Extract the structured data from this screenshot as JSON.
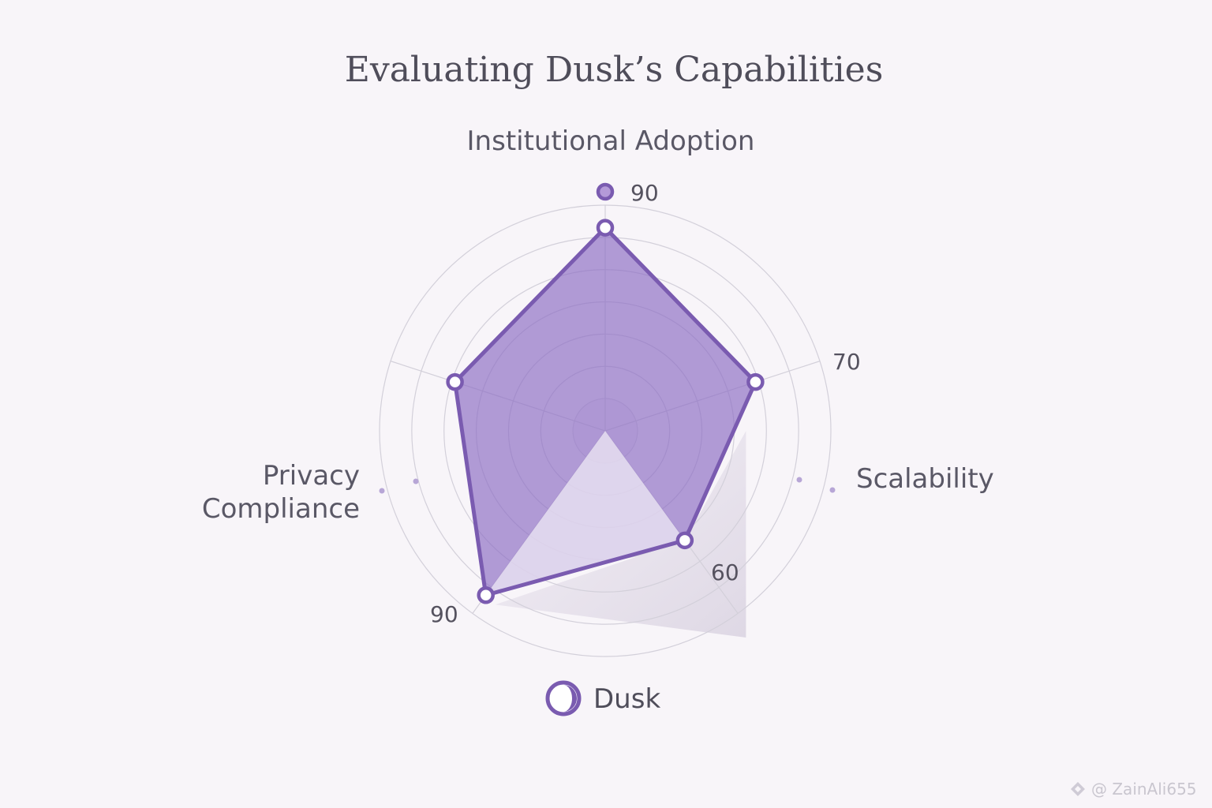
{
  "chart_data": {
    "type": "radar",
    "title": "Evaluating Dusk’s Capabilities",
    "axes": [
      {
        "label": [
          "Institutional Adoption"
        ],
        "value": 90,
        "value_label": "90"
      },
      {
        "label": [
          "Scalability"
        ],
        "value": 70,
        "value_label": "70"
      },
      {
        "label": [],
        "value": 60,
        "value_label": "60"
      },
      {
        "label": [],
        "value": 90,
        "value_label": "90"
      },
      {
        "label": [
          "Privacy",
          "Compliance"
        ],
        "value": 70,
        "value_label": ""
      }
    ],
    "series": [
      {
        "name": "Dusk",
        "values": [
          90,
          70,
          60,
          90,
          70
        ]
      }
    ],
    "rlim": [
      0,
      100
    ],
    "grid": true,
    "legend": "bottom"
  },
  "colors": {
    "series_fill": "#8e6fc4",
    "series_stroke": "#7a5bb0",
    "grid": "#d3d0da"
  },
  "watermark": "@ ZainAli655"
}
